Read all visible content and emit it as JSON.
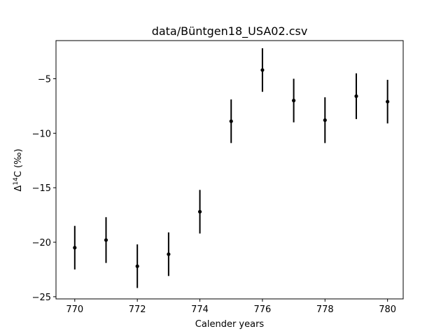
{
  "chart_data": {
    "type": "scatter",
    "title": "data/Büntgen18_USA02.csv",
    "xlabel": "Calender years",
    "ylabel_parts": {
      "delta": "Δ",
      "sup": "14",
      "rest": "C (‰)"
    },
    "xlim": [
      769.4,
      780.5
    ],
    "ylim": [
      -25.2,
      -1.5
    ],
    "xticks": [
      770,
      772,
      774,
      776,
      778,
      780
    ],
    "yticks": [
      -25,
      -20,
      -15,
      -10,
      -5
    ],
    "x": [
      770,
      771,
      772,
      773,
      774,
      775,
      776,
      777,
      778,
      779,
      780
    ],
    "y": [
      -20.5,
      -19.8,
      -22.2,
      -21.1,
      -17.2,
      -8.9,
      -4.2,
      -7.0,
      -8.8,
      -6.6,
      -7.1
    ],
    "yerr": [
      2.0,
      2.1,
      2.0,
      2.0,
      2.0,
      2.0,
      2.0,
      2.0,
      2.1,
      2.1,
      2.0
    ],
    "color": "#000000",
    "grid": false
  }
}
